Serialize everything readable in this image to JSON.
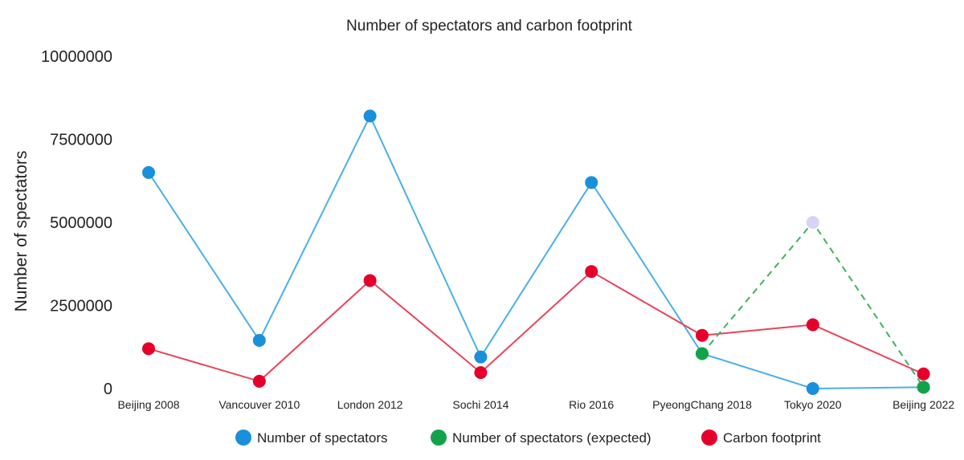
{
  "chart_data": {
    "type": "line",
    "title": "Number of spectators and carbon footprint",
    "xlabel": "",
    "ylabel": "Number of spectators",
    "ylim": [
      0,
      10000000
    ],
    "yticks": [
      "0",
      "2500000",
      "5000000",
      "7500000",
      "10000000"
    ],
    "ytick_values": [
      0,
      2500000,
      5000000,
      7500000,
      10000000
    ],
    "categories": [
      "Beijing 2008",
      "Vancouver 2010",
      "London 2012",
      "Sochi 2014",
      "Rio 2016",
      "PyeongChang 2018",
      "Tokyo 2020",
      "Beijing 2022"
    ],
    "series": [
      {
        "name": "Number of spectators",
        "color": "#1a8fdc",
        "line_color": "#4ab0e8",
        "values": [
          6500000,
          1450000,
          8200000,
          950000,
          6200000,
          1050000,
          0,
          40000
        ]
      },
      {
        "name": "Number of spectators (expected)",
        "color": "#12a349",
        "line_color": "#3fb35a",
        "dashed": true,
        "values": [
          null,
          null,
          null,
          null,
          null,
          1050000,
          5000000,
          40000
        ],
        "point_colors": [
          null,
          null,
          null,
          null,
          null,
          "#12a349",
          "#d9d3f5",
          "#12a349"
        ]
      },
      {
        "name": "Carbon footprint",
        "color": "#e4002b",
        "line_color": "#e8435a",
        "values": [
          1200000,
          220000,
          3250000,
          480000,
          3520000,
          1600000,
          1920000,
          440000
        ]
      }
    ],
    "legend": "bottom",
    "grid": false
  }
}
